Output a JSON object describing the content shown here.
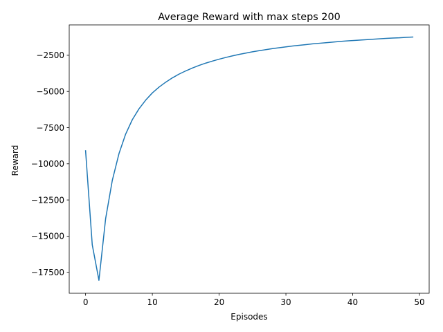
{
  "chart_data": {
    "type": "line",
    "title": "Average Reward with max steps 200",
    "xlabel": "Episodes",
    "ylabel": "Reward",
    "xlim": [
      -2.45,
      51.45
    ],
    "ylim": [
      -18950,
      -400
    ],
    "xticks": [
      0,
      10,
      20,
      30,
      40,
      50
    ],
    "xtick_labels": [
      "0",
      "10",
      "20",
      "30",
      "40",
      "50"
    ],
    "yticks": [
      -17500,
      -15000,
      -12500,
      -10000,
      -7500,
      -5000,
      -2500
    ],
    "ytick_labels": [
      "−17500",
      "−15000",
      "−12500",
      "−10000",
      "−7500",
      "−5000",
      "−2500"
    ],
    "grid": false,
    "series": [
      {
        "color": "#1f77b4",
        "x": [
          0,
          1,
          2,
          3,
          4,
          5,
          6,
          7,
          8,
          9,
          10,
          11,
          12,
          13,
          14,
          15,
          16,
          17,
          18,
          19,
          20,
          21,
          22,
          23,
          24,
          25,
          26,
          27,
          28,
          29,
          30,
          31,
          32,
          33,
          34,
          35,
          36,
          37,
          38,
          39,
          40,
          41,
          42,
          43,
          44,
          45,
          46,
          47,
          48,
          49
        ],
        "y": [
          -9100,
          -15600,
          -18050,
          -13800,
          -11150,
          -9300,
          -7950,
          -6950,
          -6200,
          -5600,
          -5100,
          -4700,
          -4360,
          -4060,
          -3800,
          -3580,
          -3380,
          -3200,
          -3040,
          -2900,
          -2770,
          -2650,
          -2540,
          -2440,
          -2350,
          -2260,
          -2180,
          -2110,
          -2040,
          -1980,
          -1920,
          -1860,
          -1810,
          -1760,
          -1710,
          -1670,
          -1630,
          -1590,
          -1550,
          -1510,
          -1480,
          -1450,
          -1420,
          -1390,
          -1360,
          -1330,
          -1310,
          -1290,
          -1260,
          -1240
        ]
      }
    ]
  }
}
